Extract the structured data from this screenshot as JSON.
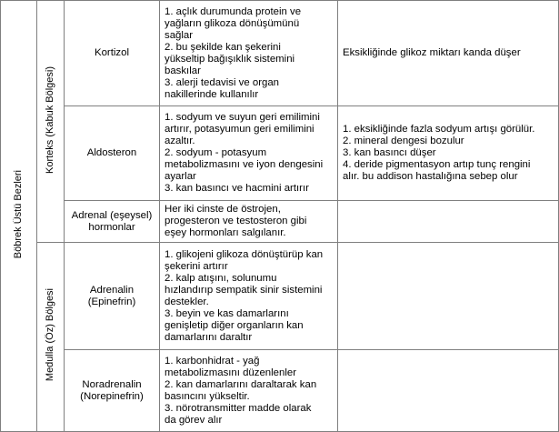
{
  "table": {
    "group_label": "Böbrek Üstü Bezleri",
    "sections": [
      {
        "label": "Korteks (Kabuk Bölgesi)",
        "hormones": [
          {
            "name": [
              "Kortizol"
            ],
            "functions": [
              "1. açlık durumunda protein ve",
              "yağların glikoza dönüşümünü",
              "sağlar",
              "2. bu şekilde kan şekerini",
              "yükseltip bağışıklık sistemini",
              "baskılar",
              "3. alerji tedavisi ve organ",
              "nakillerinde kullanılır"
            ],
            "effects": [
              "Eksikliğinde glikoz miktarı kanda düşer"
            ]
          },
          {
            "name": [
              "Aldosteron"
            ],
            "functions": [
              "1. sodyum ve suyun geri emilimini",
              "artırır, potasyumun geri emilimini",
              "azaltır.",
              "2. sodyum - potasyum",
              "metabolizmasını ve iyon dengesini",
              "ayarlar",
              "3. kan basıncı ve hacmini artırır"
            ],
            "effects": [
              "1. eksikliğinde fazla sodyum artışı görülür.",
              "2. mineral dengesi bozulur",
              "3. kan basıncı düşer",
              "4. deride pigmentasyon artıp tunç rengini",
              "alır. bu addison hastalığına sebep olur"
            ]
          },
          {
            "name": [
              "Adrenal (eşeysel)",
              "hormonlar"
            ],
            "functions": [
              "Her iki cinste de östrojen,",
              "progesteron ve testosteron gibi",
              "eşey hormonları salgılanır."
            ],
            "effects": []
          }
        ]
      },
      {
        "label": "Medulla (Öz) Bölgesi",
        "hormones": [
          {
            "name": [
              "Adrenalin",
              "(Epinefrin)"
            ],
            "functions": [
              "1. glikojeni glikoza dönüştürüp kan",
              "şekerini artırır",
              "2. kalp atışını, solunumu",
              "hızlandırıp sempatik sinir sistemini",
              "destekler.",
              "3. beyin ve kas damarlarını",
              "genişletip diğer organların kan",
              "damarlarını daraltır"
            ],
            "effects": []
          },
          {
            "name": [
              "Noradrenalin",
              "(Norepinefrin)"
            ],
            "functions": [
              "1. karbonhidrat - yağ",
              "metabolizmasını düzenlenler",
              "2. kan damarlarını daraltarak kan",
              "basıncını yükseltir.",
              "3. nörotransmitter madde olarak",
              "da görev alır"
            ],
            "effects": []
          }
        ]
      }
    ]
  }
}
